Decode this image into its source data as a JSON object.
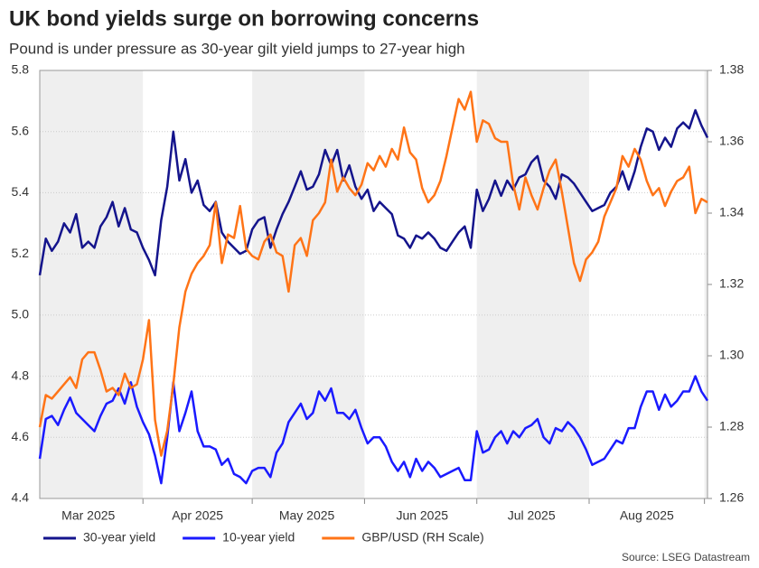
{
  "chart_data": {
    "type": "line",
    "title": "UK bond yields surge on borrowing concerns",
    "subtitle": "Pound is under pressure as 30-year gilt yield jumps to 27-year high",
    "source": "Source: LSEG Datastream",
    "categories": [
      null,
      null,
      null,
      null,
      null,
      null,
      null,
      null,
      "Mar 2025",
      null,
      null,
      null,
      null,
      null,
      null,
      null,
      null,
      null,
      null,
      null,
      null,
      null,
      null,
      null,
      null,
      null,
      "Apr 2025",
      null,
      null,
      null,
      null,
      null,
      null,
      null,
      null,
      null,
      null,
      null,
      null,
      null,
      null,
      null,
      null,
      null,
      "May 2025",
      null,
      null,
      null,
      null,
      null,
      null,
      null,
      null,
      null,
      null,
      null,
      null,
      null,
      null,
      null,
      null,
      null,
      null,
      "Jun 2025",
      null,
      null,
      null,
      null,
      null,
      null,
      null,
      null,
      null,
      null,
      null,
      null,
      null,
      null,
      null,
      null,
      null,
      "Jul 2025",
      null,
      null,
      null,
      null,
      null,
      null,
      null,
      null,
      null,
      null,
      null,
      null,
      null,
      null,
      null,
      null,
      null,
      null,
      "Aug 2025",
      null,
      null,
      null,
      null,
      null,
      null,
      null,
      null,
      null,
      null
    ],
    "ylim": [
      4.4,
      5.8
    ],
    "yticks": [
      4.4,
      4.6,
      4.8,
      {
        "value": 5,
        "label": "5.0"
      },
      5.2,
      5.4,
      5.6,
      5.8
    ],
    "y2lim": [
      1.26,
      1.38
    ],
    "y2ticks": [
      1.26,
      1.28,
      {
        "value": 1.3,
        "label": "1.30"
      },
      1.32,
      1.34,
      1.36,
      1.38
    ],
    "grid": true,
    "legend": "bottom",
    "series": [
      {
        "name": "30-year yield",
        "color": "#14148c",
        "values": [
          5.13,
          5.25,
          5.21,
          5.24,
          5.3,
          5.27,
          5.33,
          5.22,
          5.24,
          5.22,
          5.29,
          5.32,
          5.37,
          5.29,
          5.35,
          5.28,
          5.27,
          5.22,
          5.18,
          5.13,
          5.31,
          5.42,
          5.6,
          5.44,
          5.51,
          5.4,
          5.44,
          5.36,
          5.34,
          5.37,
          5.27,
          5.24,
          5.22,
          5.2,
          5.21,
          5.28,
          5.31,
          5.32,
          5.22,
          5.28,
          5.33,
          5.37,
          5.42,
          5.47,
          5.41,
          5.42,
          5.46,
          5.54,
          5.49,
          5.54,
          5.44,
          5.49,
          5.42,
          5.38,
          5.41,
          5.34,
          5.37,
          5.35,
          5.33,
          5.26,
          5.25,
          5.22,
          5.26,
          5.25,
          5.27,
          5.25,
          5.22,
          5.21,
          5.24,
          5.27,
          5.29,
          5.22,
          5.41,
          5.34,
          5.38,
          5.44,
          5.39,
          5.44,
          5.41,
          5.45,
          5.46,
          5.5,
          5.52,
          5.44,
          5.42,
          5.38,
          5.46,
          5.45,
          5.43,
          5.4,
          5.37,
          5.34,
          5.35,
          5.36,
          5.4,
          5.42,
          5.47,
          5.41,
          5.47,
          5.55,
          5.61,
          5.6,
          5.54,
          5.58,
          5.55,
          5.61,
          5.63,
          5.61,
          5.67,
          5.62,
          5.58
        ]
      },
      {
        "name": "10-year yield",
        "color": "#1a1aff",
        "values": [
          4.53,
          4.66,
          4.67,
          4.64,
          4.69,
          4.73,
          4.68,
          4.66,
          4.64,
          4.62,
          4.67,
          4.71,
          4.72,
          4.76,
          4.71,
          4.78,
          4.7,
          4.65,
          4.61,
          4.54,
          4.45,
          4.6,
          4.78,
          4.62,
          4.68,
          4.75,
          4.62,
          4.57,
          4.57,
          4.56,
          4.51,
          4.53,
          4.48,
          4.47,
          4.45,
          4.49,
          4.5,
          4.5,
          4.47,
          4.55,
          4.58,
          4.65,
          4.68,
          4.71,
          4.66,
          4.68,
          4.75,
          4.72,
          4.76,
          4.68,
          4.68,
          4.66,
          4.69,
          4.63,
          4.58,
          4.6,
          4.6,
          4.57,
          4.52,
          4.49,
          4.52,
          4.47,
          4.53,
          4.49,
          4.52,
          4.5,
          4.47,
          4.48,
          4.49,
          4.5,
          4.46,
          4.46,
          4.62,
          4.55,
          4.56,
          4.6,
          4.62,
          4.58,
          4.62,
          4.6,
          4.63,
          4.64,
          4.66,
          4.6,
          4.58,
          4.63,
          4.62,
          4.65,
          4.63,
          4.6,
          4.56,
          4.51,
          4.52,
          4.53,
          4.56,
          4.59,
          4.58,
          4.63,
          4.63,
          4.7,
          4.75,
          4.75,
          4.69,
          4.74,
          4.7,
          4.72,
          4.75,
          4.75,
          4.8,
          4.75,
          4.72
        ]
      },
      {
        "name": "GBP/USD (RH Scale)",
        "color": "#ff7417",
        "axis": "y2",
        "values": [
          1.28,
          1.289,
          1.288,
          1.29,
          1.292,
          1.294,
          1.291,
          1.299,
          1.301,
          1.301,
          1.296,
          1.29,
          1.291,
          1.289,
          1.295,
          1.291,
          1.292,
          1.299,
          1.31,
          1.282,
          1.272,
          1.279,
          1.292,
          1.308,
          1.318,
          1.323,
          1.326,
          1.328,
          1.331,
          1.343,
          1.326,
          1.334,
          1.333,
          1.342,
          1.33,
          1.328,
          1.327,
          1.332,
          1.334,
          1.329,
          1.328,
          1.318,
          1.331,
          1.333,
          1.328,
          1.338,
          1.34,
          1.343,
          1.355,
          1.346,
          1.35,
          1.347,
          1.345,
          1.348,
          1.354,
          1.352,
          1.356,
          1.353,
          1.358,
          1.355,
          1.364,
          1.357,
          1.355,
          1.347,
          1.343,
          1.345,
          1.349,
          1.356,
          1.364,
          1.372,
          1.369,
          1.374,
          1.36,
          1.366,
          1.365,
          1.361,
          1.36,
          1.36,
          1.348,
          1.341,
          1.35,
          1.345,
          1.341,
          1.347,
          1.352,
          1.355,
          1.346,
          1.336,
          1.326,
          1.321,
          1.327,
          1.329,
          1.332,
          1.339,
          1.343,
          1.347,
          1.356,
          1.353,
          1.358,
          1.355,
          1.349,
          1.345,
          1.347,
          1.342,
          1.346,
          1.349,
          1.35,
          1.353,
          1.34,
          1.344,
          1.343
        ]
      }
    ]
  }
}
